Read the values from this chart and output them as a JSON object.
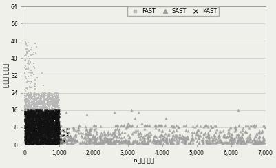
{
  "title": "",
  "xlabel": "n번째 병합",
  "ylabel": "로그동 접합성",
  "xlim": [
    -50,
    7000
  ],
  "ylim": [
    0,
    64
  ],
  "yticks": [
    0,
    8,
    16,
    24,
    32,
    40,
    48,
    56,
    64
  ],
  "xticks": [
    0,
    1000,
    2000,
    3000,
    4000,
    5000,
    6000,
    7000
  ],
  "xtick_labels": [
    "0",
    "1,000",
    "2,000",
    "3,000",
    "4,000",
    "5,000",
    "6,000",
    "7,000"
  ],
  "legend_labels": [
    "FAST",
    "SAST",
    "KAST"
  ],
  "fast_color": "#b8b8b8",
  "sast_color": "#a0a0a0",
  "kast_color": "#111111",
  "background_color": "#f0f0ea",
  "figsize": [
    4.02,
    2.44
  ],
  "dpi": 100
}
